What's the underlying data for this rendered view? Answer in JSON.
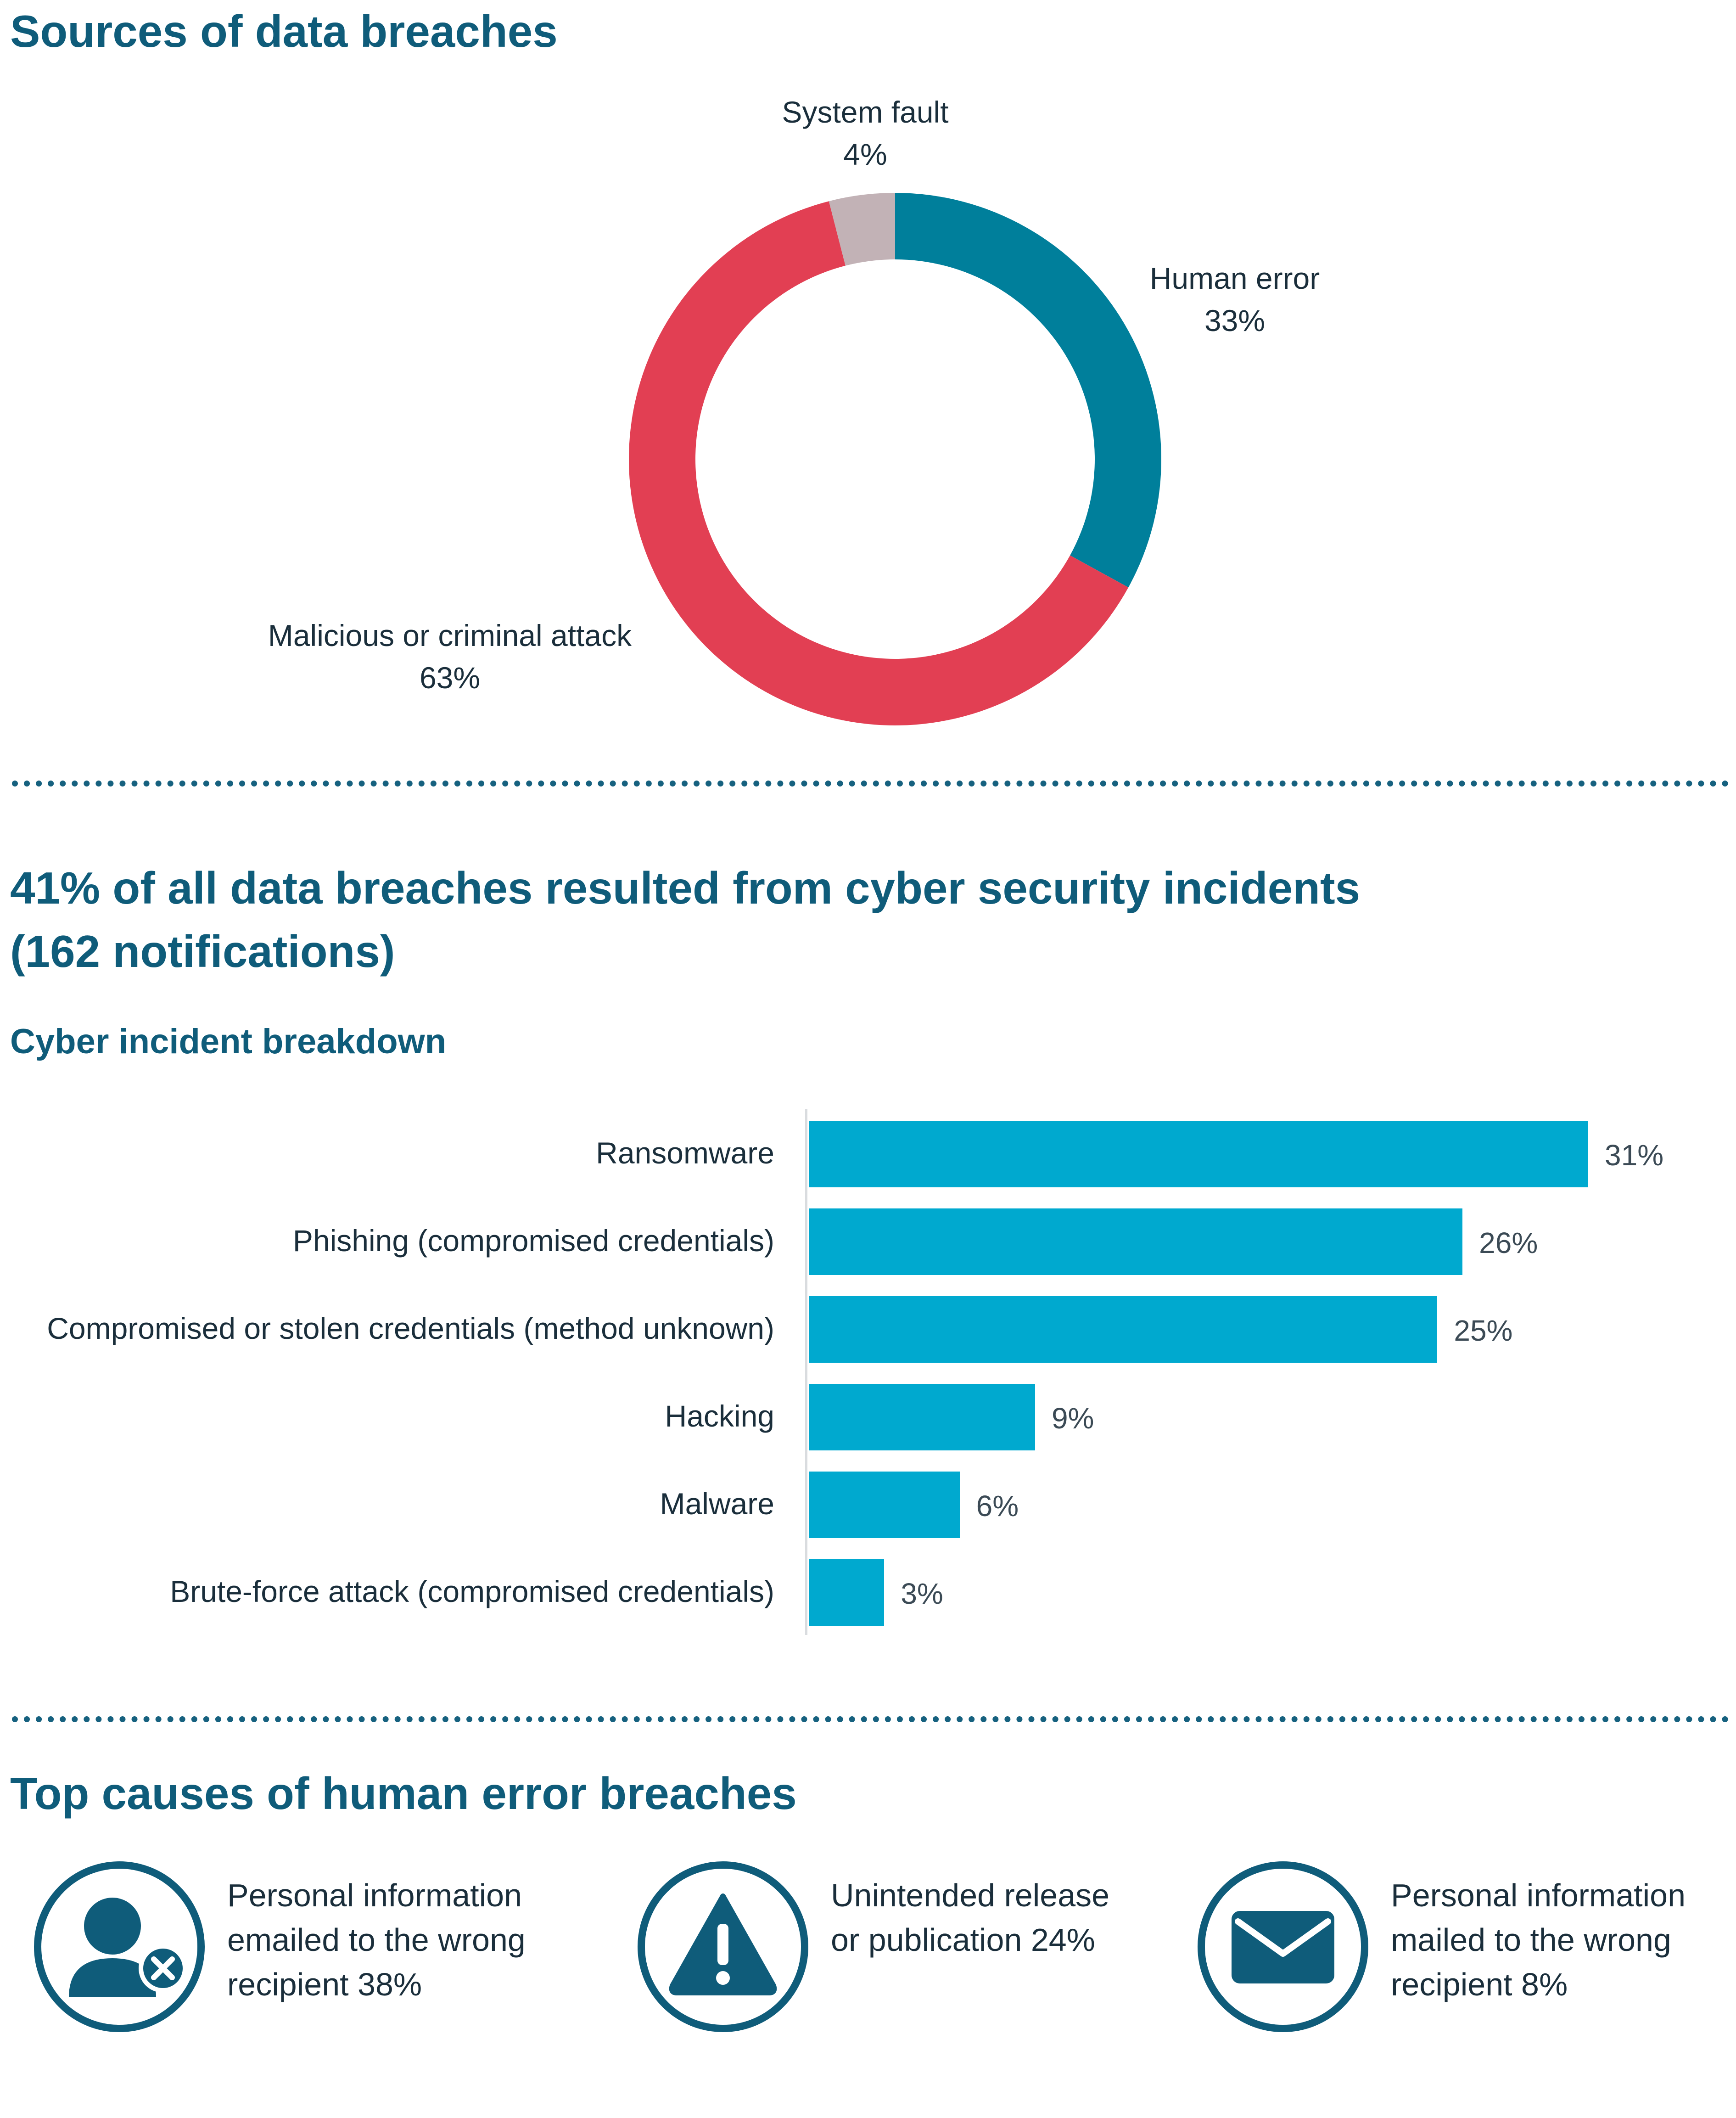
{
  "colors": {
    "heading": "#0f5c7a",
    "human_error": "#007f9b",
    "malicious": "#e23f53",
    "system_fault": "#c2b2b6",
    "bar": "#00a9cf",
    "divider": "#16617f",
    "icon": "#0f5c7a"
  },
  "sections": {
    "sources": {
      "title": "Sources of data breaches"
    },
    "cyber": {
      "title_line1": "41% of all data breaches resulted from cyber security incidents",
      "title_line2": "(162 notifications)",
      "subtitle": "Cyber incident breakdown"
    },
    "human_error": {
      "title": "Top causes of human error breaches",
      "causes": [
        {
          "icon": "user-x-icon",
          "lines": [
            "Personal information",
            "emailed to the wrong",
            "recipient 38%"
          ]
        },
        {
          "icon": "warning-icon",
          "lines": [
            "Unintended release",
            "or publication 24%"
          ]
        },
        {
          "icon": "envelope-icon",
          "lines": [
            "Personal information",
            "mailed to the wrong",
            "recipient 8%"
          ]
        }
      ]
    }
  },
  "chart_data": [
    {
      "type": "pie",
      "title": "Sources of data breaches",
      "categories": [
        "Human error",
        "Malicious or criminal attack",
        "System fault"
      ],
      "values": [
        33,
        63,
        4
      ],
      "value_labels": [
        "33%",
        "63%",
        "4%"
      ]
    },
    {
      "type": "bar",
      "orientation": "horizontal",
      "title": "Cyber incident breakdown",
      "categories": [
        "Ransomware",
        "Phishing (compromised credentials)",
        "Compromised or stolen credentials (method unknown)",
        "Hacking",
        "Malware",
        "Brute-force attack (compromised credentials)"
      ],
      "values": [
        31,
        26,
        25,
        9,
        6,
        3
      ],
      "value_labels": [
        "31%",
        "26%",
        "25%",
        "9%",
        "6%",
        "3%"
      ],
      "xlim": [
        0,
        31
      ]
    }
  ]
}
